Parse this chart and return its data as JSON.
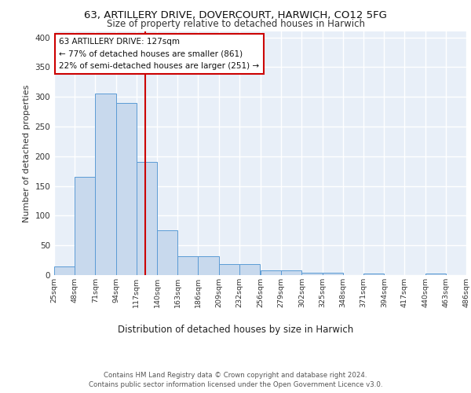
{
  "title_line1": "63, ARTILLERY DRIVE, DOVERCOURT, HARWICH, CO12 5FG",
  "title_line2": "Size of property relative to detached houses in Harwich",
  "xlabel": "Distribution of detached houses by size in Harwich",
  "ylabel": "Number of detached properties",
  "bar_edges": [
    25,
    48,
    71,
    94,
    117,
    140,
    163,
    186,
    209,
    232,
    256,
    279,
    302,
    325,
    348,
    371,
    394,
    417,
    440,
    463,
    486
  ],
  "bar_heights": [
    15,
    165,
    305,
    290,
    190,
    75,
    32,
    32,
    18,
    18,
    8,
    8,
    4,
    4,
    0,
    3,
    0,
    0,
    2,
    0,
    3
  ],
  "bar_color": "#c8d9ed",
  "bar_edge_color": "#5b9bd5",
  "property_size": 127,
  "vline_color": "#cc0000",
  "annotation_text": "63 ARTILLERY DRIVE: 127sqm\n← 77% of detached houses are smaller (861)\n22% of semi-detached houses are larger (251) →",
  "annotation_box_color": "#ffffff",
  "annotation_box_edge": "#cc0000",
  "tick_labels": [
    "25sqm",
    "48sqm",
    "71sqm",
    "94sqm",
    "117sqm",
    "140sqm",
    "163sqm",
    "186sqm",
    "209sqm",
    "232sqm",
    "256sqm",
    "279sqm",
    "302sqm",
    "325sqm",
    "348sqm",
    "371sqm",
    "394sqm",
    "417sqm",
    "440sqm",
    "463sqm",
    "486sqm"
  ],
  "yticks": [
    0,
    50,
    100,
    150,
    200,
    250,
    300,
    350,
    400
  ],
  "ylim": [
    0,
    410
  ],
  "background_color": "#e8eff8",
  "grid_color": "#ffffff",
  "footer_text": "Contains HM Land Registry data © Crown copyright and database right 2024.\nContains public sector information licensed under the Open Government Licence v3.0."
}
